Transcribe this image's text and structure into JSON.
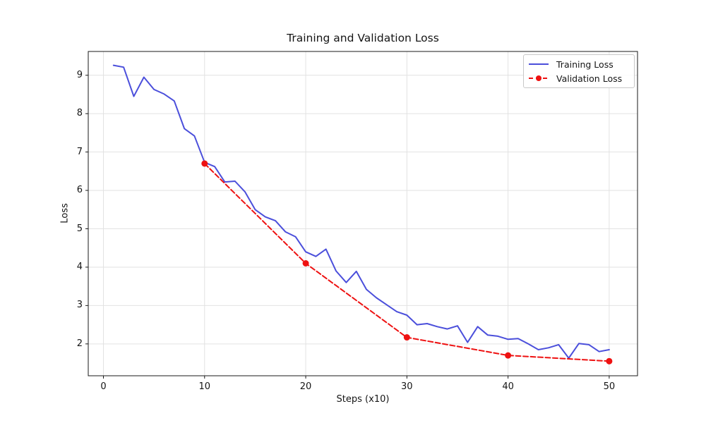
{
  "chart_data": {
    "type": "line",
    "title": "Training and Validation Loss",
    "xlabel": "Steps (x10)",
    "ylabel": "Loss",
    "x_ticks": [
      0,
      10,
      20,
      30,
      40,
      50
    ],
    "y_ticks": [
      2,
      3,
      4,
      5,
      6,
      7,
      8,
      9
    ],
    "xlim": [
      -1.5,
      52.8
    ],
    "ylim": [
      1.17,
      9.62
    ],
    "grid": true,
    "legend_position": "upper-right",
    "series": [
      {
        "name": "Training Loss",
        "color": "#4b4fdb",
        "line_style": "solid",
        "marker": "none",
        "x": [
          1,
          2,
          3,
          4,
          5,
          6,
          7,
          8,
          9,
          10,
          11,
          12,
          13,
          14,
          15,
          16,
          17,
          18,
          19,
          20,
          21,
          22,
          23,
          24,
          25,
          26,
          27,
          28,
          29,
          30,
          31,
          32,
          33,
          34,
          35,
          36,
          37,
          38,
          39,
          40,
          41,
          42,
          43,
          44,
          45,
          46,
          47,
          48,
          49,
          50
        ],
        "values": [
          9.26,
          9.21,
          8.45,
          8.95,
          8.63,
          8.51,
          8.33,
          7.61,
          7.42,
          6.73,
          6.62,
          6.22,
          6.24,
          5.96,
          5.5,
          5.31,
          5.21,
          4.92,
          4.79,
          4.4,
          4.28,
          4.47,
          3.9,
          3.6,
          3.89,
          3.42,
          3.2,
          3.02,
          2.84,
          2.75,
          2.5,
          2.53,
          2.45,
          2.39,
          2.47,
          2.04,
          2.45,
          2.23,
          2.2,
          2.12,
          2.14,
          2.0,
          1.85,
          1.9,
          1.98,
          1.63,
          2.01,
          1.98,
          1.8,
          1.85
        ]
      },
      {
        "name": "Validation Loss",
        "color": "#ee1111",
        "line_style": "dashed",
        "marker": "circle",
        "x": [
          10,
          20,
          30,
          40,
          50
        ],
        "values": [
          6.7,
          4.1,
          2.17,
          1.7,
          1.55
        ]
      }
    ]
  },
  "colors": {
    "background": "#ffffff",
    "grid": "#e2e2e2",
    "frame": "#1a1a1a",
    "tick": "#1a1a1a",
    "text": "#151515"
  }
}
